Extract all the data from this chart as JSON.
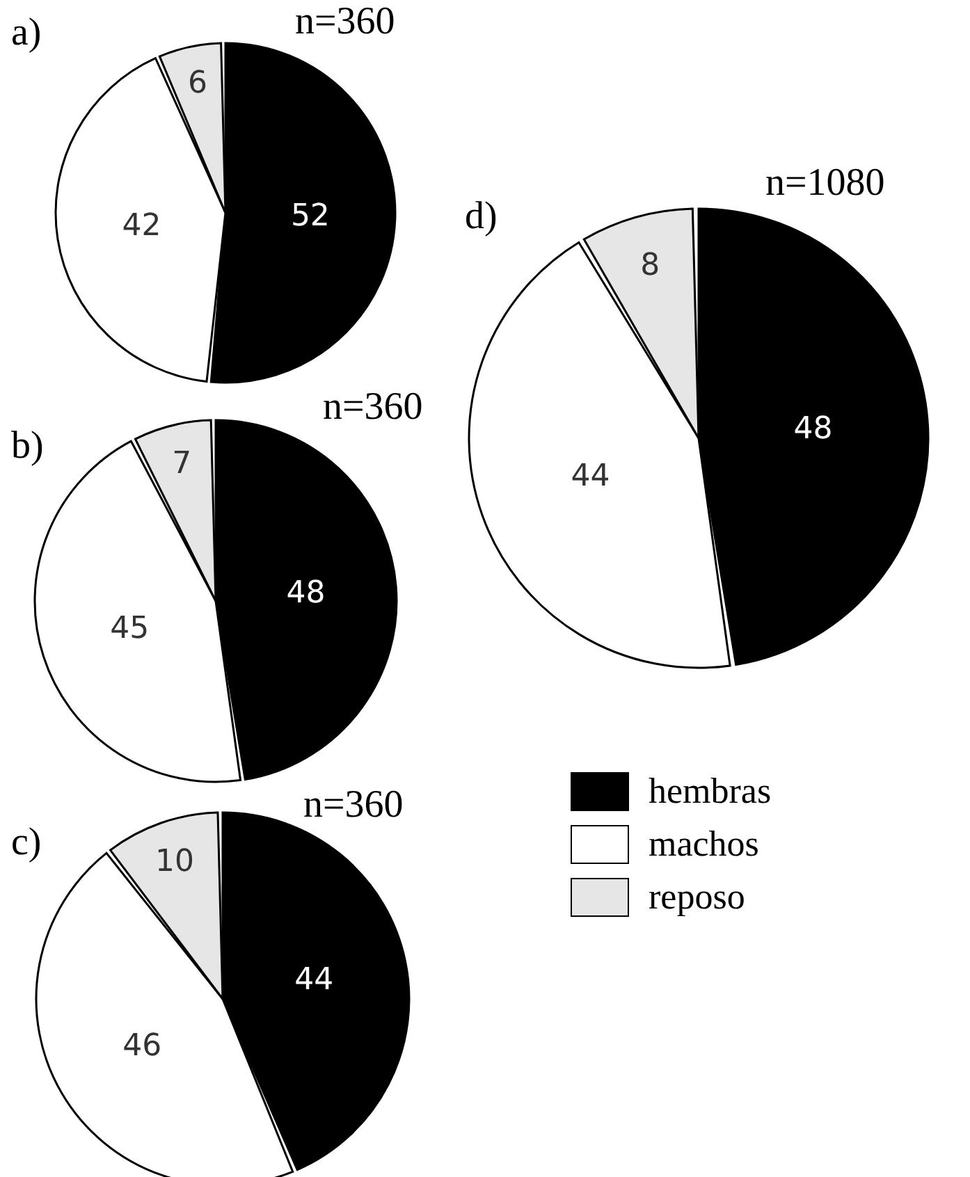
{
  "chart_data": [
    {
      "type": "pie",
      "title": "a)",
      "annotations": [
        "n=360"
      ],
      "categories": [
        null,
        null,
        null
      ],
      "values": [
        52,
        42,
        6
      ],
      "colors": [
        "#000000",
        "#ffffff",
        "#e6e6e6"
      ],
      "data_labels": true
    },
    {
      "type": "pie",
      "title": "b)",
      "annotations": [
        "n=360"
      ],
      "categories": [
        null,
        null,
        null
      ],
      "values": [
        48,
        45,
        7
      ],
      "colors": [
        "#000000",
        "#ffffff",
        "#e6e6e6"
      ],
      "data_labels": true
    },
    {
      "type": "pie",
      "title": "c)",
      "annotations": [
        "n=360"
      ],
      "categories": [
        null,
        null,
        null
      ],
      "values": [
        44,
        46,
        10
      ],
      "colors": [
        "#000000",
        "#ffffff",
        "#e6e6e6"
      ],
      "data_labels": true
    },
    {
      "type": "pie",
      "title": "d)",
      "annotations": [
        "n=1080"
      ],
      "categories": [
        "hembras",
        "machos",
        "reposo"
      ],
      "values": [
        48,
        44,
        8
      ],
      "colors": [
        "#000000",
        "#ffffff",
        "#e6e6e6"
      ],
      "data_labels": true,
      "legend": "bottom"
    }
  ]
}
